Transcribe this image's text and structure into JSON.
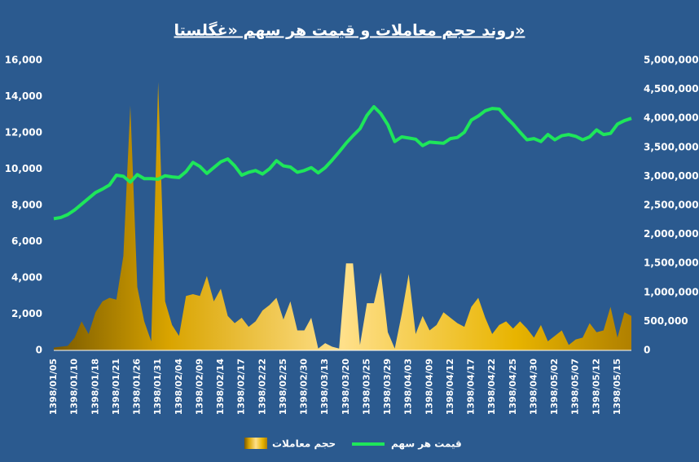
{
  "chart_data": {
    "type": "area-line",
    "title": "روند حجم معاملات و قیمت هر سهم «غگلستا»",
    "categories": [
      "1398/01/05",
      null,
      null,
      "1398/01/10",
      null,
      null,
      "1398/01/18",
      null,
      null,
      "1398/01/21",
      null,
      null,
      "1398/01/26",
      null,
      null,
      "1398/01/31",
      null,
      null,
      "1398/02/04",
      null,
      null,
      "1398/02/09",
      null,
      null,
      "1398/02/14",
      null,
      null,
      "1398/02/17",
      null,
      null,
      "1398/02/22",
      null,
      null,
      "1398/02/25",
      null,
      null,
      "1398/02/30",
      null,
      null,
      "1398/03/13",
      null,
      null,
      "1398/03/20",
      null,
      null,
      "1398/03/25",
      null,
      null,
      "1398/03/29",
      null,
      null,
      "1398/04/03",
      null,
      null,
      "1398/04/09",
      null,
      null,
      "1398/04/12",
      null,
      null,
      "1398/04/17",
      null,
      null,
      "1398/04/22",
      null,
      null,
      "1398/04/25",
      null,
      null,
      "1398/04/30",
      null,
      null,
      "1398/05/02",
      null,
      null,
      "1398/05/07",
      null,
      null,
      "1398/05/12",
      null,
      null,
      "1398/05/15",
      null,
      null
    ],
    "series": [
      {
        "name": "حجم معاملات",
        "kind": "area",
        "axis": "y",
        "color": "#e0a800",
        "values": [
          150,
          200,
          250,
          700,
          1600,
          900,
          2100,
          2700,
          2900,
          2800,
          5200,
          13500,
          3500,
          1600,
          500,
          14800,
          2700,
          1400,
          800,
          3000,
          3100,
          3000,
          4100,
          2700,
          3400,
          1900,
          1500,
          1800,
          1300,
          1600,
          2200,
          2500,
          2900,
          1700,
          2700,
          1100,
          1100,
          1800,
          100,
          400,
          200,
          100,
          4800,
          4800,
          300,
          2600,
          2600,
          4300,
          1000,
          100,
          2000,
          4200,
          900,
          1900,
          1100,
          1400,
          2100,
          1800,
          1500,
          1300,
          2400,
          2900,
          1800,
          900,
          1400,
          1600,
          1200,
          1600,
          1200,
          700,
          1400,
          500,
          800,
          1100,
          300,
          600,
          700,
          1500,
          1000,
          1100,
          2400,
          700,
          2100,
          1900
        ]
      },
      {
        "name": "قیمت هر سهم",
        "kind": "line",
        "axis": "y2",
        "color": "#1ee65a",
        "values": [
          2270000,
          2290000,
          2340000,
          2420000,
          2520000,
          2620000,
          2720000,
          2780000,
          2850000,
          3020000,
          3000000,
          2900000,
          3030000,
          2960000,
          2960000,
          2950000,
          3010000,
          2990000,
          2980000,
          3080000,
          3240000,
          3170000,
          3050000,
          3150000,
          3250000,
          3300000,
          3180000,
          3020000,
          3070000,
          3100000,
          3040000,
          3130000,
          3270000,
          3180000,
          3160000,
          3070000,
          3100000,
          3150000,
          3060000,
          3150000,
          3280000,
          3420000,
          3570000,
          3700000,
          3820000,
          4050000,
          4200000,
          4080000,
          3890000,
          3600000,
          3680000,
          3660000,
          3640000,
          3530000,
          3590000,
          3580000,
          3570000,
          3650000,
          3670000,
          3760000,
          3970000,
          4040000,
          4130000,
          4170000,
          4160000,
          4020000,
          3900000,
          3760000,
          3630000,
          3650000,
          3600000,
          3720000,
          3630000,
          3700000,
          3720000,
          3690000,
          3630000,
          3680000,
          3800000,
          3720000,
          3740000,
          3900000,
          3960000,
          4000000
        ]
      }
    ],
    "ylim": [
      0,
      16000
    ],
    "yticks": [
      0,
      {
        "value": 2000,
        "label": "2,000"
      },
      {
        "value": 4000,
        "label": "4,000"
      },
      {
        "value": 6000,
        "label": "6,000"
      },
      {
        "value": 8000,
        "label": "8,000"
      },
      {
        "value": 10000,
        "label": "10,000"
      },
      {
        "value": 12000,
        "label": "12,000"
      },
      {
        "value": 14000,
        "label": "14,000"
      },
      {
        "value": 16000,
        "label": "16,000"
      }
    ],
    "y2lim": [
      0,
      5000000
    ],
    "y2ticks": [
      0,
      {
        "value": 500000,
        "label": "500,000"
      },
      {
        "value": 1000000,
        "label": "1,000,000"
      },
      {
        "value": 1500000,
        "label": "1,500,000"
      },
      {
        "value": 2000000,
        "label": "2,000,000"
      },
      {
        "value": 2500000,
        "label": "2,500,000"
      },
      {
        "value": 3000000,
        "label": "3,000,000"
      },
      {
        "value": 3500000,
        "label": "3,500,000"
      },
      {
        "value": 4000000,
        "label": "4,000,000"
      },
      {
        "value": 4500000,
        "label": "4,500,000"
      },
      {
        "value": 5000000,
        "label": "5,000,000"
      }
    ],
    "grid": false,
    "legend": "bottom"
  }
}
